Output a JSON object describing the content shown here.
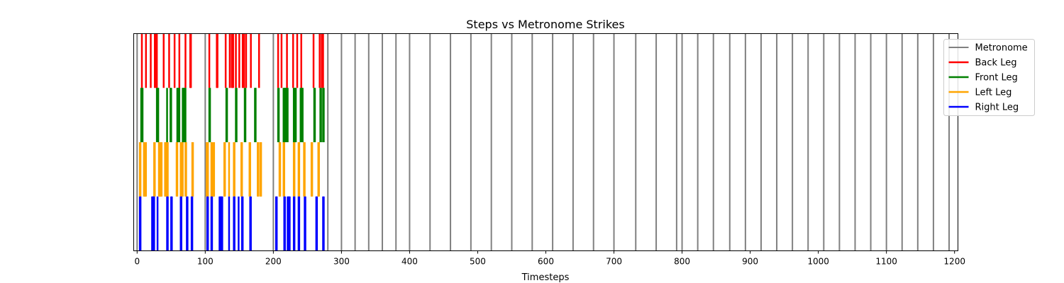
{
  "chart_data": {
    "type": "event_lines",
    "title": "Steps vs Metronome Strikes",
    "xlabel": "Timesteps",
    "ylabel": "",
    "xlim": [
      -5,
      1205
    ],
    "xticks": [
      0,
      100,
      200,
      300,
      400,
      500,
      600,
      700,
      800,
      900,
      1000,
      1100,
      1200
    ],
    "grid": false,
    "legend_position": "top-right",
    "metronome": {
      "name": "Metronome",
      "color": "#808080",
      "times": [
        0,
        100,
        200,
        280,
        300,
        320,
        340,
        360,
        380,
        400,
        430,
        460,
        490,
        520,
        550,
        580,
        610,
        640,
        670,
        700,
        732,
        762,
        792,
        800,
        823,
        846,
        870,
        893,
        916,
        939,
        962,
        985,
        1008,
        1031,
        1054,
        1077,
        1100,
        1123,
        1146,
        1169,
        1192
      ]
    },
    "series": [
      {
        "name": "Back Leg",
        "color": "#ff0000",
        "row": 3,
        "times": [
          7,
          13,
          20,
          26,
          28,
          29,
          39,
          47,
          55,
          62,
          71,
          78,
          79,
          106,
          117,
          118,
          130,
          136,
          139,
          140,
          141,
          145,
          150,
          155,
          157,
          160,
          167,
          179,
          207,
          212,
          220,
          229,
          235,
          241,
          259,
          268,
          271,
          273
        ]
      },
      {
        "name": "Front Leg",
        "color": "#008000",
        "row": 2,
        "times": [
          6,
          7,
          8,
          29,
          30,
          31,
          44,
          49,
          50,
          59,
          60,
          61,
          62,
          67,
          68,
          69,
          70,
          71,
          106,
          107,
          131,
          132,
          145,
          146,
          158,
          159,
          173,
          174,
          207,
          208,
          215,
          216,
          217,
          218,
          219,
          220,
          221,
          230,
          231,
          232,
          233,
          240,
          241,
          242,
          243,
          260,
          261,
          269,
          270,
          273,
          274
        ]
      },
      {
        "name": "Left Leg",
        "color": "#ffa500",
        "row": 1,
        "times": [
          4,
          5,
          10,
          11,
          12,
          13,
          25,
          26,
          32,
          33,
          34,
          35,
          36,
          41,
          42,
          43,
          44,
          45,
          58,
          59,
          64,
          65,
          66,
          67,
          71,
          72,
          81,
          82,
          102,
          103,
          104,
          109,
          110,
          111,
          112,
          113,
          128,
          129,
          135,
          142,
          143,
          153,
          154,
          165,
          166,
          177,
          178,
          181,
          182,
          209,
          210,
          215,
          216,
          230,
          231,
          237,
          238,
          245,
          246,
          256,
          257,
          266,
          267
        ]
      },
      {
        "name": "Right Leg",
        "color": "#0000ff",
        "row": 0,
        "times": [
          4,
          5,
          22,
          23,
          24,
          25,
          30,
          44,
          45,
          50,
          51,
          64,
          65,
          73,
          74,
          80,
          81,
          103,
          104,
          109,
          110,
          121,
          122,
          123,
          124,
          125,
          135,
          142,
          143,
          149,
          154,
          155,
          166,
          167,
          204,
          205,
          216,
          217,
          221,
          222,
          223,
          224,
          230,
          231,
          237,
          238,
          246,
          247,
          263,
          264,
          273,
          274
        ]
      }
    ]
  }
}
